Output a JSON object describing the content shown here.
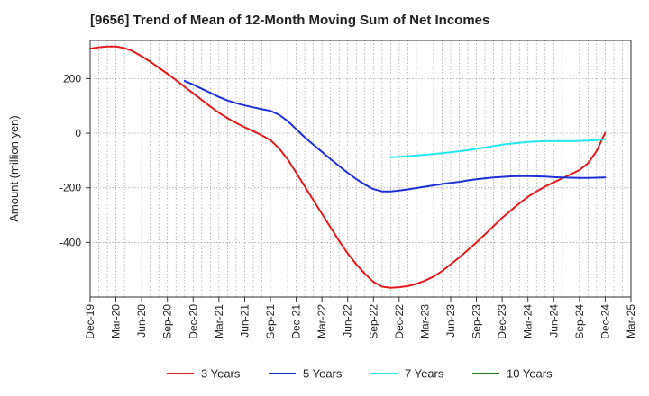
{
  "chart_data": {
    "type": "line",
    "title": "[9656]  Trend of Mean of 12-Month Moving Sum of Net Incomes",
    "xlabel": "",
    "ylabel": "Amount (million yen)",
    "ylim": [
      -600,
      340
    ],
    "yticks": [
      200,
      0,
      -200,
      -400
    ],
    "xlim": [
      "2019-12",
      "2025-03"
    ],
    "x_tick_labels": [
      "Dec-19",
      "Mar-20",
      "Jun-20",
      "Sep-20",
      "Dec-20",
      "Mar-21",
      "Jun-21",
      "Sep-21",
      "Dec-21",
      "Mar-22",
      "Jun-22",
      "Sep-22",
      "Dec-22",
      "Mar-23",
      "Jun-23",
      "Sep-23",
      "Dec-23",
      "Mar-24",
      "Jun-24",
      "Sep-24",
      "Dec-24",
      "Mar-25"
    ],
    "grid": true,
    "legend_position": "bottom",
    "series": [
      {
        "name": "3 Years",
        "color": "#e31a1c",
        "x": [
          "2019-12",
          "2020-01",
          "2020-02",
          "2020-03",
          "2020-04",
          "2020-05",
          "2020-06",
          "2020-07",
          "2020-08",
          "2020-09",
          "2020-10",
          "2020-11",
          "2020-12",
          "2021-01",
          "2021-02",
          "2021-03",
          "2021-04",
          "2021-05",
          "2021-06",
          "2021-07",
          "2021-08",
          "2021-09",
          "2021-10",
          "2021-11",
          "2021-12",
          "2022-01",
          "2022-02",
          "2022-03",
          "2022-04",
          "2022-05",
          "2022-06",
          "2022-07",
          "2022-08",
          "2022-09",
          "2022-10",
          "2022-11",
          "2022-12",
          "2023-01",
          "2023-02",
          "2023-03",
          "2023-04",
          "2023-05",
          "2023-06",
          "2023-07",
          "2023-08",
          "2023-09",
          "2023-10",
          "2023-11",
          "2023-12",
          "2024-01",
          "2024-02",
          "2024-03",
          "2024-04",
          "2024-05",
          "2024-06",
          "2024-07",
          "2024-08",
          "2024-09",
          "2024-10",
          "2024-11",
          "2024-12"
        ],
        "values": [
          310,
          315,
          318,
          318,
          312,
          300,
          282,
          262,
          240,
          218,
          195,
          170,
          146,
          122,
          98,
          75,
          55,
          38,
          22,
          8,
          -8,
          -25,
          -55,
          -95,
          -145,
          -195,
          -245,
          -295,
          -345,
          -395,
          -440,
          -480,
          -515,
          -545,
          -562,
          -566,
          -564,
          -560,
          -552,
          -540,
          -525,
          -505,
          -480,
          -455,
          -428,
          -400,
          -370,
          -340,
          -310,
          -283,
          -257,
          -233,
          -213,
          -195,
          -180,
          -165,
          -150,
          -135,
          -110,
          -65,
          2
        ]
      },
      {
        "name": "5 Years",
        "color": "#1d2fd6",
        "x": [
          "2020-11",
          "2020-12",
          "2021-01",
          "2021-02",
          "2021-03",
          "2021-04",
          "2021-05",
          "2021-06",
          "2021-07",
          "2021-08",
          "2021-09",
          "2021-10",
          "2021-11",
          "2021-12",
          "2022-01",
          "2022-02",
          "2022-03",
          "2022-04",
          "2022-05",
          "2022-06",
          "2022-07",
          "2022-08",
          "2022-09",
          "2022-10",
          "2022-11",
          "2022-12",
          "2023-01",
          "2023-02",
          "2023-03",
          "2023-04",
          "2023-05",
          "2023-06",
          "2023-07",
          "2023-08",
          "2023-09",
          "2023-10",
          "2023-11",
          "2023-12",
          "2024-01",
          "2024-02",
          "2024-03",
          "2024-04",
          "2024-05",
          "2024-06",
          "2024-07",
          "2024-08",
          "2024-09",
          "2024-10",
          "2024-11",
          "2024-12"
        ],
        "values": [
          192,
          178,
          163,
          148,
          133,
          120,
          110,
          102,
          95,
          88,
          82,
          68,
          45,
          15,
          -15,
          -42,
          -68,
          -95,
          -120,
          -145,
          -168,
          -188,
          -205,
          -213,
          -213,
          -210,
          -206,
          -201,
          -196,
          -191,
          -186,
          -182,
          -178,
          -173,
          -169,
          -165,
          -162,
          -160,
          -158,
          -157,
          -157,
          -158,
          -159,
          -161,
          -162,
          -163,
          -164,
          -164,
          -163,
          -162
        ]
      },
      {
        "name": "7 Years",
        "color": "#22e6f0",
        "x": [
          "2022-11",
          "2022-12",
          "2023-01",
          "2023-02",
          "2023-03",
          "2023-04",
          "2023-05",
          "2023-06",
          "2023-07",
          "2023-08",
          "2023-09",
          "2023-10",
          "2023-11",
          "2023-12",
          "2024-01",
          "2024-02",
          "2024-03",
          "2024-04",
          "2024-05",
          "2024-06",
          "2024-07",
          "2024-08",
          "2024-09",
          "2024-10",
          "2024-11",
          "2024-12"
        ],
        "values": [
          -88,
          -86,
          -84,
          -82,
          -79,
          -76,
          -73,
          -70,
          -66,
          -62,
          -57,
          -52,
          -47,
          -42,
          -38,
          -35,
          -32,
          -30,
          -29,
          -29,
          -29,
          -29,
          -28,
          -27,
          -25,
          -22
        ]
      },
      {
        "name": "10 Years",
        "color": "#1a7f1a",
        "x": [],
        "values": []
      }
    ]
  }
}
